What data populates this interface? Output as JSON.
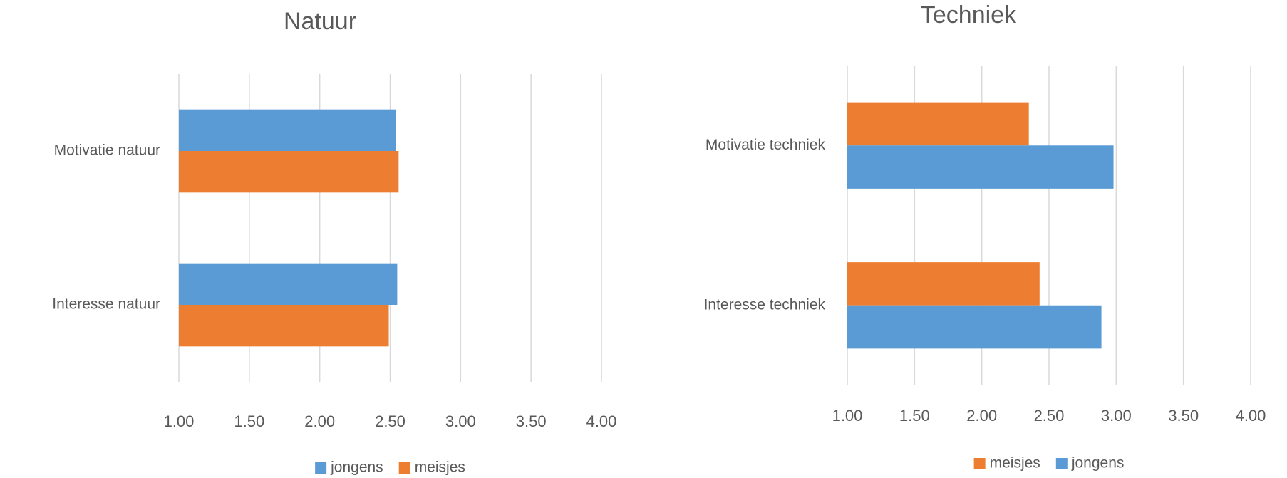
{
  "chart_data": [
    {
      "type": "barh",
      "title": "Natuur",
      "categories": [
        "Motivatie natuur",
        "Interesse natuur"
      ],
      "series": [
        {
          "name": "jongens",
          "color": "#5b9bd5",
          "values": [
            2.54,
            2.55
          ]
        },
        {
          "name": "meisjes",
          "color": "#ed7d31",
          "values": [
            2.56,
            2.49
          ]
        }
      ],
      "xlim": [
        1,
        4
      ],
      "xticks": [
        {
          "value": 1,
          "label": "1.00"
        },
        {
          "value": 1.5,
          "label": "1.50"
        },
        {
          "value": 2,
          "label": "2.00"
        },
        {
          "value": 2.5,
          "label": "2.50"
        },
        {
          "value": 3,
          "label": "3.00"
        },
        {
          "value": 3.5,
          "label": "3.50"
        },
        {
          "value": 4,
          "label": "4.00"
        }
      ],
      "grid": true,
      "legend": "bottom"
    },
    {
      "type": "barh",
      "title": "Techniek",
      "categories": [
        "Motivatie techniek",
        "Interesse techniek"
      ],
      "series": [
        {
          "name": "meisjes",
          "color": "#ed7d31",
          "values": [
            2.35,
            2.43
          ]
        },
        {
          "name": "jongens",
          "color": "#5b9bd5",
          "values": [
            2.98,
            2.89
          ]
        }
      ],
      "xlim": [
        1,
        4
      ],
      "xticks": [
        {
          "value": 1,
          "label": "1.00"
        },
        {
          "value": 1.5,
          "label": "1.50"
        },
        {
          "value": 2,
          "label": "2.00"
        },
        {
          "value": 2.5,
          "label": "2.50"
        },
        {
          "value": 3,
          "label": "3.00"
        },
        {
          "value": 3.5,
          "label": "3.50"
        },
        {
          "value": 4,
          "label": "4.00"
        }
      ],
      "grid": true,
      "legend": "bottom"
    }
  ]
}
